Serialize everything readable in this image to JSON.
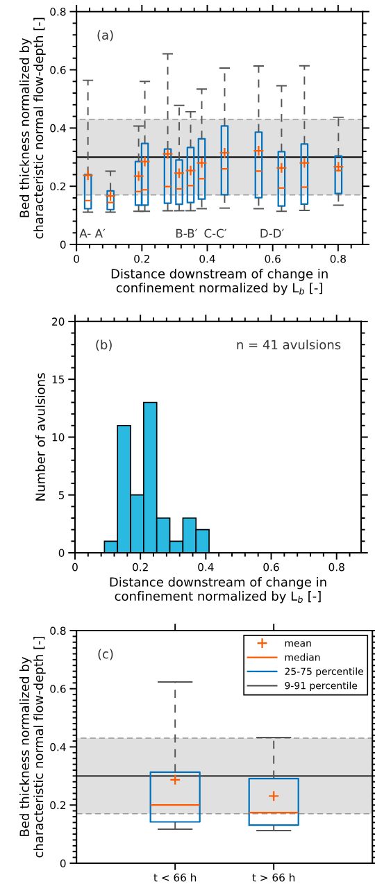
{
  "chart_data": [
    {
      "type": "box",
      "ylabel": "Bed thickness normalized by\ncharacteristic normal flow-depth [-]",
      "xlabel": "Distance downstream of change in\nconfinement normalized by L$_{b}$ [-]",
      "x": [
        0.035,
        0.104,
        0.19,
        0.209,
        0.279,
        0.314,
        0.349,
        0.383,
        0.453,
        0.557,
        0.627,
        0.697,
        0.801
      ],
      "series": [
        {
          "type": "scatter",
          "marker": "cross",
          "color": "#ff5a00",
          "values": [
            0.238,
            0.167,
            0.235,
            0.285,
            0.311,
            0.245,
            0.254,
            0.28,
            0.315,
            0.322,
            0.263,
            0.28,
            0.267
          ]
        },
        {
          "type": "box",
          "color": "#0072bd",
          "boxes": [
            {
              "low": 0.111,
              "q1": 0.123,
              "median": 0.151,
              "q3": 0.24,
              "high": 0.564
            },
            {
              "low": 0.111,
              "q1": 0.12,
              "median": 0.144,
              "q3": 0.184,
              "high": 0.252
            },
            {
              "low": 0.114,
              "q1": 0.135,
              "median": 0.182,
              "q3": 0.285,
              "high": 0.407
            },
            {
              "low": 0.114,
              "q1": 0.135,
              "median": 0.188,
              "q3": 0.347,
              "high": 0.56
            },
            {
              "low": 0.116,
              "q1": 0.142,
              "median": 0.199,
              "q3": 0.328,
              "high": 0.655
            },
            {
              "low": 0.116,
              "q1": 0.138,
              "median": 0.191,
              "q3": 0.29,
              "high": 0.478
            },
            {
              "low": 0.116,
              "q1": 0.144,
              "median": 0.202,
              "q3": 0.333,
              "high": 0.456
            },
            {
              "low": 0.123,
              "q1": 0.156,
              "median": 0.226,
              "q3": 0.363,
              "high": 0.534
            },
            {
              "low": 0.125,
              "q1": 0.171,
              "median": 0.26,
              "q3": 0.407,
              "high": 0.606
            },
            {
              "low": 0.123,
              "q1": 0.161,
              "median": 0.252,
              "q3": 0.386,
              "high": 0.613
            },
            {
              "low": 0.114,
              "q1": 0.132,
              "median": 0.194,
              "q3": 0.319,
              "high": 0.545
            },
            {
              "low": 0.117,
              "q1": 0.139,
              "median": 0.197,
              "q3": 0.345,
              "high": 0.614
            },
            {
              "low": 0.135,
              "q1": 0.175,
              "median": 0.254,
              "q3": 0.304,
              "high": 0.437
            }
          ]
        }
      ],
      "xlim": [
        0,
        0.875
      ],
      "xticks": [
        0,
        0.2,
        0.4,
        0.6,
        0.8
      ],
      "ylim": [
        0,
        0.8
      ],
      "yticks": [
        0,
        0.2,
        0.4,
        0.6,
        0.8
      ],
      "ref_lines": [
        {
          "axis": "y",
          "value": 0.3,
          "color": "#000000"
        }
      ],
      "bands": [
        {
          "axis": "y",
          "from": 0.17,
          "to": 0.43,
          "color": "#e0e0e0"
        }
      ],
      "annotations": [
        "(a)",
        "A- A′",
        "B-B′",
        "C-C′",
        "D-D′"
      ],
      "grid": false,
      "legend": false
    },
    {
      "type": "histogram",
      "ylabel": "Number of avulsions",
      "xlabel": "Distance downstream of change in\nconfinement normalized by L$_{b}$ [-]",
      "bins": [
        0.09,
        0.13,
        0.17,
        0.21,
        0.25,
        0.29,
        0.33,
        0.37,
        0.41
      ],
      "values": [
        1,
        11,
        5,
        13,
        3,
        1,
        3,
        2
      ],
      "color": "#29b9e1",
      "xlim": [
        0,
        0.875
      ],
      "xticks": [
        0,
        0.2,
        0.4,
        0.6,
        0.8
      ],
      "ylim": [
        0,
        20
      ],
      "yticks": [
        0,
        5,
        10,
        15,
        20
      ],
      "annotations": [
        "(b)",
        "n = 41 avulsions"
      ],
      "grid": false
    },
    {
      "type": "box",
      "ylabel": "Bed thickness normalized by\ncharacteristic normal flow-depth [-]",
      "categories": [
        "t < 66 h",
        "t > 66 h"
      ],
      "series": [
        {
          "name": "mean",
          "type": "scatter",
          "marker": "cross",
          "color": "#ff5a00",
          "values": [
            0.287,
            0.231
          ]
        },
        {
          "name": "25-75 percentile",
          "type": "box",
          "color": "#0072bd",
          "boxes": [
            {
              "low": 0.117,
              "q1": 0.142,
              "median": 0.2,
              "q3": 0.313,
              "high": 0.623
            },
            {
              "low": 0.112,
              "q1": 0.131,
              "median": 0.174,
              "q3": 0.291,
              "high": 0.432
            }
          ]
        }
      ],
      "ylim": [
        0,
        0.8
      ],
      "yticks": [
        0,
        0.2,
        0.4,
        0.6,
        0.8
      ],
      "ref_lines": [
        {
          "axis": "y",
          "value": 0.3,
          "color": "#000000"
        }
      ],
      "bands": [
        {
          "axis": "y",
          "from": 0.17,
          "to": 0.43,
          "color": "#e0e0e0"
        }
      ],
      "annotations": [
        "(c)",
        "median",
        "9-91 percentile"
      ],
      "grid": false,
      "legend": "top right"
    }
  ]
}
